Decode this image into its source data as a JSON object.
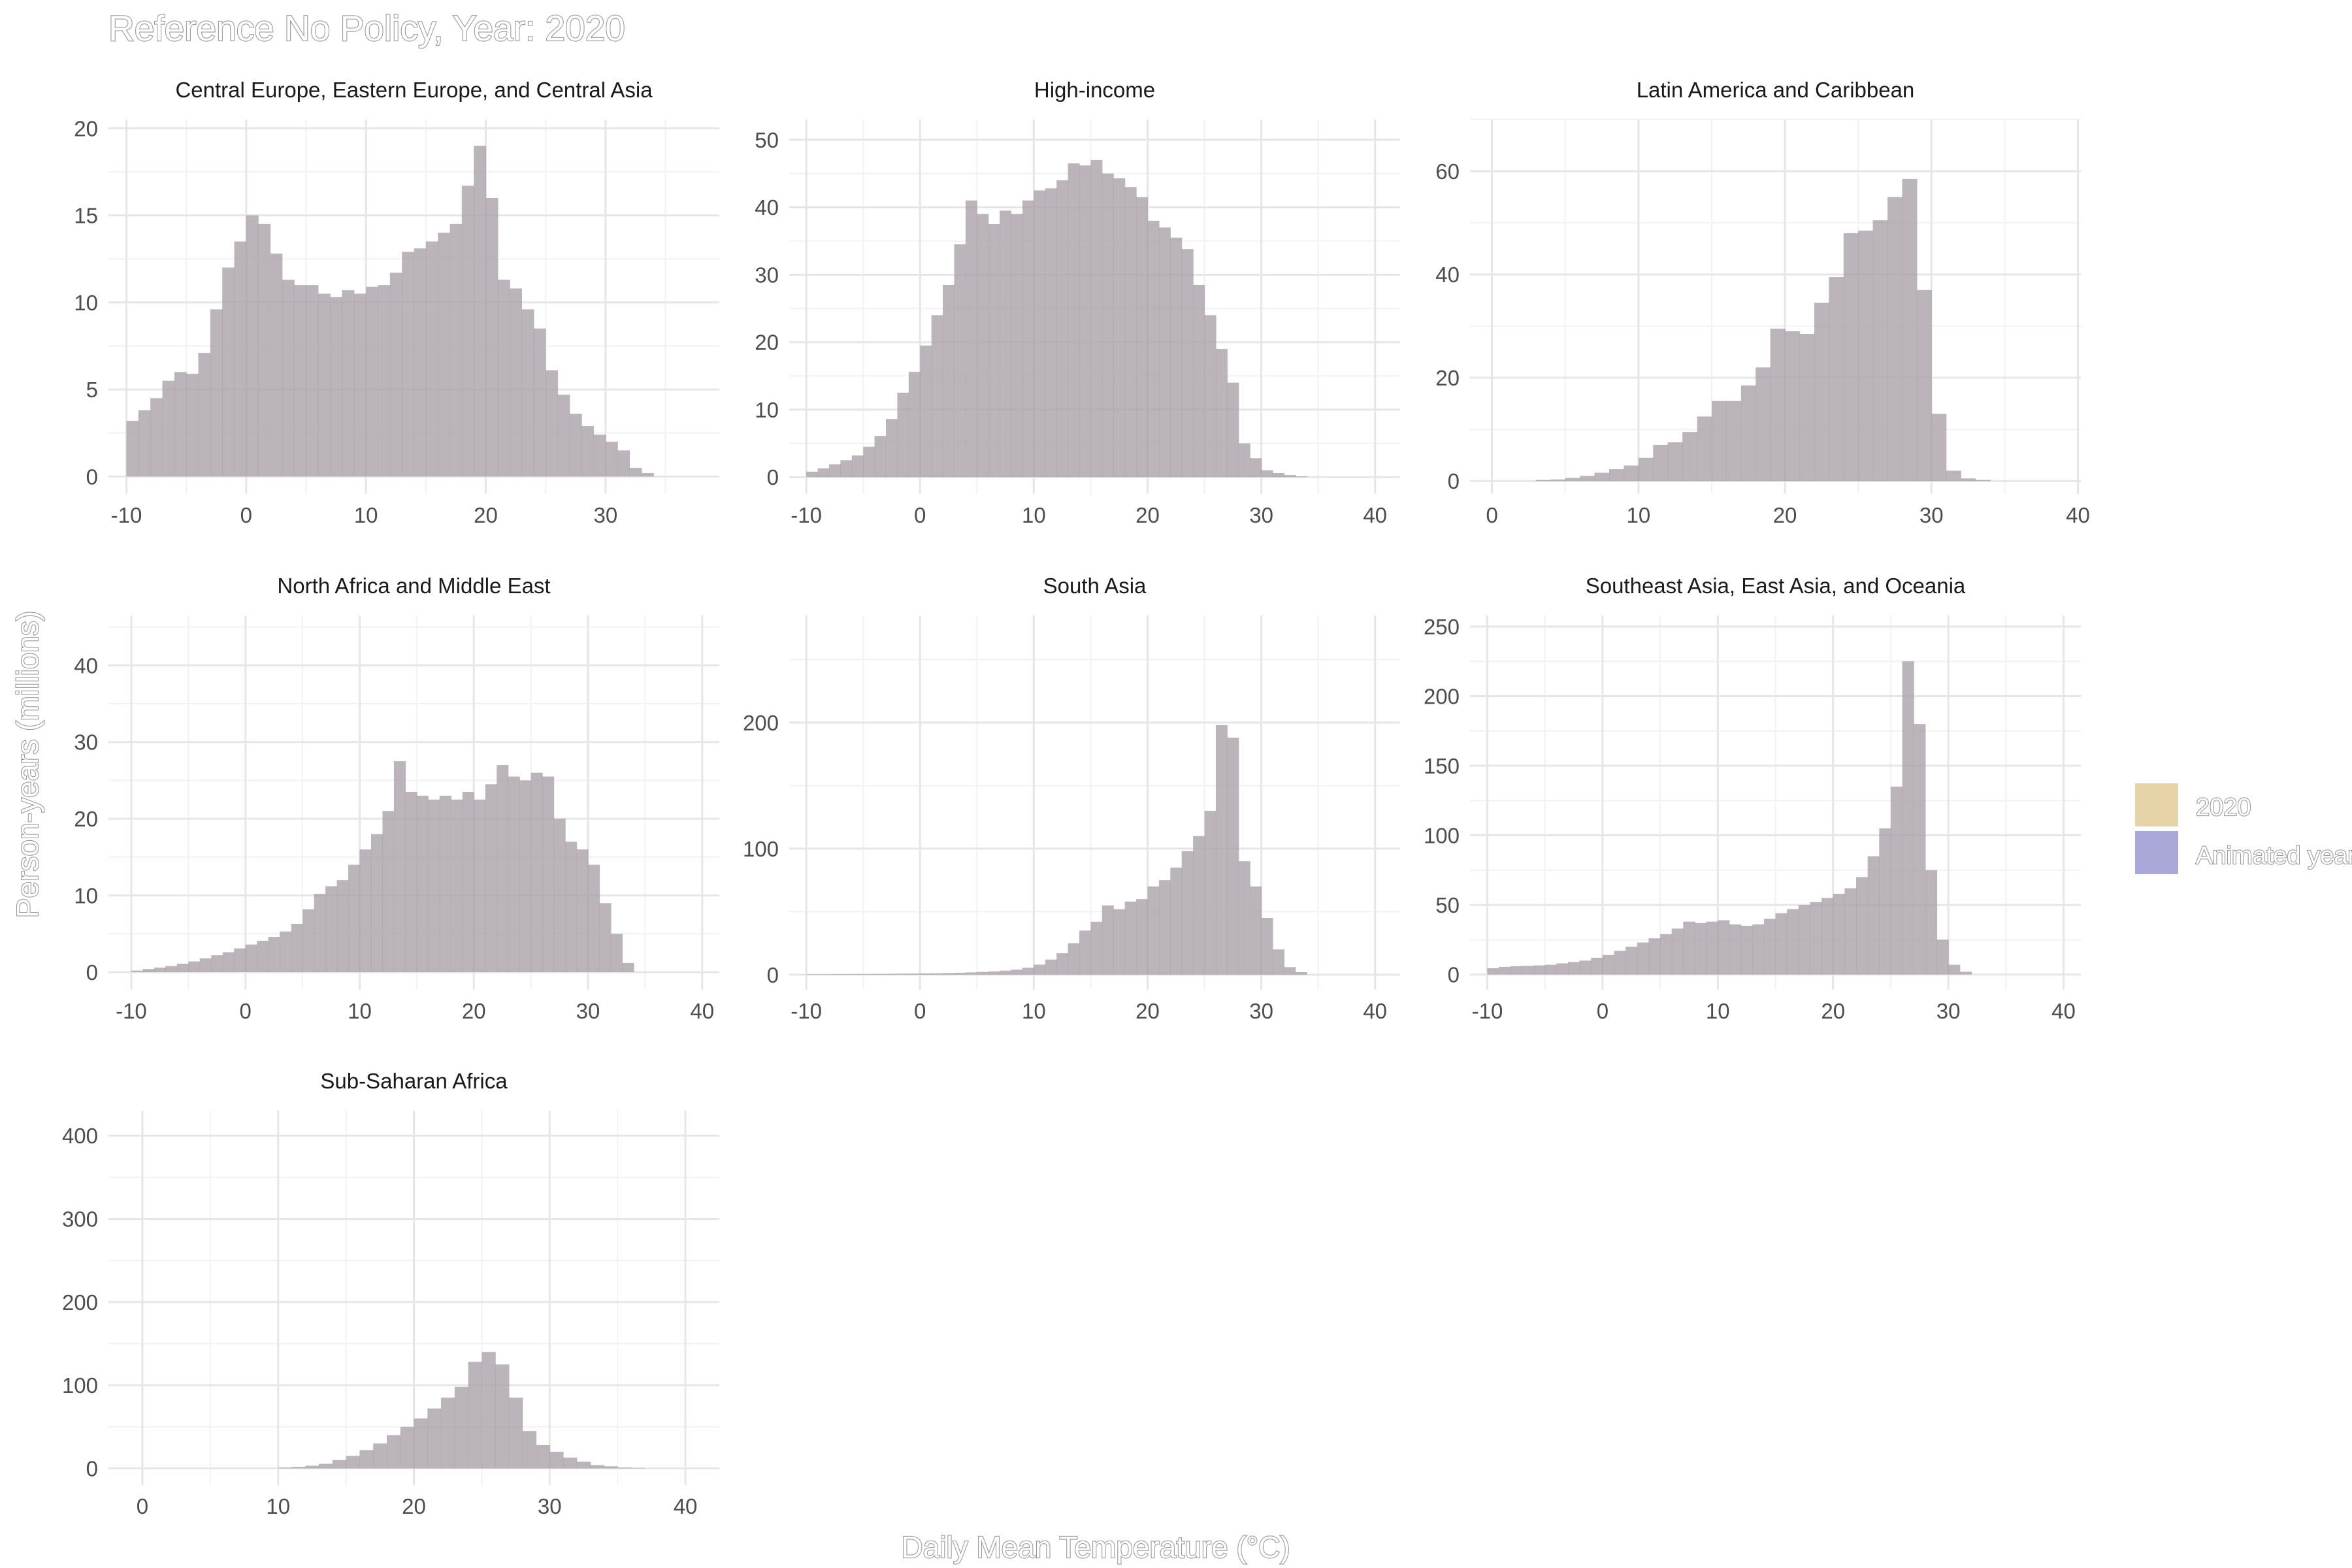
{
  "title": "Reference No Policy, Year: 2020",
  "xlabel": "Daily Mean Temperature (°C)",
  "ylabel": "Person-years (millions)",
  "legend": {
    "position": "right",
    "items": [
      {
        "label": "2020",
        "color": "#e6d3a8"
      },
      {
        "label": "Animated year",
        "color": "#a9a8d8"
      }
    ]
  },
  "bar_color": "#a8a0a8",
  "chart_data": [
    {
      "type": "bar",
      "title": "Central Europe, Eastern Europe, and Central Asia",
      "xlim": [
        -11.5,
        39.5
      ],
      "ylim": [
        -1,
        20.5
      ],
      "xticks": [
        -10,
        0,
        10,
        20,
        30
      ],
      "yticks": [
        0,
        5,
        10,
        15,
        20
      ],
      "bin_start": -10,
      "bin_width": 1,
      "values": [
        3.2,
        3.8,
        4.5,
        5.5,
        6.0,
        5.9,
        7.1,
        9.6,
        12.0,
        13.5,
        15.0,
        14.5,
        12.8,
        11.3,
        11.0,
        11.0,
        10.5,
        10.3,
        10.7,
        10.5,
        10.9,
        11.0,
        11.7,
        12.9,
        13.1,
        13.5,
        14.0,
        14.5,
        16.7,
        19.0,
        16.0,
        11.3,
        10.8,
        9.6,
        8.5,
        6.1,
        4.7,
        3.6,
        2.9,
        2.4,
        2.0,
        1.5,
        0.5,
        0.2
      ]
    },
    {
      "type": "bar",
      "title": "High-income",
      "xlim": [
        -11.5,
        42.2
      ],
      "ylim": [
        -2.5,
        53
      ],
      "xticks": [
        -10,
        0,
        10,
        20,
        30,
        40
      ],
      "yticks": [
        0,
        10,
        20,
        30,
        40,
        50
      ],
      "bin_start": -10,
      "bin_width": 1,
      "values": [
        0.8,
        1.3,
        1.9,
        2.5,
        3.2,
        4.5,
        6.1,
        8.6,
        12.5,
        15.6,
        19.5,
        24.0,
        28.5,
        34.5,
        41.0,
        39.0,
        37.5,
        39.5,
        39.0,
        41.0,
        42.5,
        42.8,
        44.0,
        46.5,
        46.2,
        47.0,
        45.0,
        44.3,
        43.0,
        41.5,
        38.0,
        37.0,
        35.5,
        33.8,
        28.5,
        24.0,
        19.0,
        14.0,
        5.0,
        2.8,
        1.0,
        0.6,
        0.3,
        0.1
      ]
    },
    {
      "type": "bar",
      "title": "Latin America and Caribbean",
      "xlim": [
        -1.5,
        40.2
      ],
      "ylim": [
        -2.5,
        70
      ],
      "xticks": [
        0,
        10,
        20,
        30,
        40
      ],
      "yticks": [
        0,
        20,
        40,
        60
      ],
      "bin_start": 3,
      "bin_width": 1,
      "values": [
        0.2,
        0.3,
        0.6,
        1.0,
        1.6,
        2.3,
        3.0,
        4.5,
        7.0,
        7.5,
        9.5,
        12.5,
        15.5,
        15.5,
        18.5,
        22.0,
        29.5,
        29.0,
        28.5,
        34.5,
        39.5,
        48.0,
        48.5,
        50.5,
        55.0,
        58.5,
        37.0,
        13.0,
        2.0,
        0.5,
        0.2
      ]
    },
    {
      "type": "bar",
      "title": "North Africa and Middle East",
      "xlim": [
        -12,
        41.5
      ],
      "ylim": [
        -2.3,
        46.5
      ],
      "xticks": [
        -10,
        0,
        10,
        20,
        30,
        40
      ],
      "yticks": [
        0,
        10,
        20,
        30,
        40
      ],
      "bin_start": -10,
      "bin_width": 1,
      "values": [
        0.2,
        0.4,
        0.6,
        0.8,
        1.1,
        1.4,
        1.8,
        2.2,
        2.6,
        3.1,
        3.6,
        4.1,
        4.6,
        5.3,
        6.3,
        8.2,
        10.2,
        11.2,
        12.0,
        14.0,
        16.0,
        18.0,
        21.0,
        27.5,
        23.5,
        23.0,
        22.5,
        23.0,
        22.5,
        23.5,
        22.5,
        24.5,
        27.0,
        25.5,
        25.0,
        26.0,
        25.5,
        20.0,
        17.0,
        16.0,
        14.0,
        9.0,
        5.0,
        1.2
      ]
    },
    {
      "type": "bar",
      "title": "South Asia",
      "xlim": [
        -11.5,
        42.2
      ],
      "ylim": [
        -12,
        285
      ],
      "xticks": [
        -10,
        0,
        10,
        20,
        30,
        40
      ],
      "yticks": [
        0,
        100,
        200
      ],
      "bin_start": -10,
      "bin_width": 1,
      "values": [
        0.3,
        0.3,
        0.4,
        0.4,
        0.5,
        0.5,
        0.6,
        0.7,
        0.8,
        0.9,
        1.0,
        1.1,
        1.3,
        1.5,
        1.8,
        2.2,
        2.6,
        3.2,
        4.0,
        5.5,
        8.0,
        12.0,
        17.0,
        25.0,
        35.0,
        42.0,
        55.0,
        52.0,
        58.0,
        60.0,
        70.0,
        75.0,
        85.0,
        98.0,
        110.0,
        130.0,
        198.0,
        188.0,
        90.0,
        70.0,
        45.0,
        20.0,
        6.0,
        2.0
      ]
    },
    {
      "type": "bar",
      "title": "Southeast Asia, East Asia, and Oceania",
      "xlim": [
        -11.5,
        41.5
      ],
      "ylim": [
        -11,
        258
      ],
      "xticks": [
        -10,
        0,
        10,
        20,
        30,
        40
      ],
      "yticks": [
        0,
        50,
        100,
        150,
        200,
        250
      ],
      "bin_start": -10,
      "bin_width": 1,
      "values": [
        4.5,
        5.5,
        6.0,
        6.2,
        6.5,
        7.0,
        8.0,
        9.0,
        10.0,
        12.0,
        14.0,
        17.0,
        20.0,
        23.0,
        26.0,
        29.0,
        33.0,
        38.0,
        37.0,
        38.0,
        39.0,
        36.0,
        35.0,
        36.0,
        40.0,
        44.0,
        47.0,
        50.0,
        52.0,
        55.0,
        58.0,
        62.0,
        70.0,
        85.0,
        105.0,
        135.0,
        225.0,
        180.0,
        75.0,
        25.0,
        7.0,
        2.0
      ]
    },
    {
      "type": "bar",
      "title": "Sub-Saharan Africa",
      "xlim": [
        -2.5,
        42.5
      ],
      "ylim": [
        -20,
        430
      ],
      "xticks": [
        0,
        10,
        20,
        30,
        40
      ],
      "yticks": [
        0,
        100,
        200,
        300,
        400
      ],
      "bin_start": 10,
      "bin_width": 1,
      "values": [
        1.0,
        1.8,
        3.2,
        5.5,
        10.0,
        15.0,
        22.0,
        30.0,
        40.0,
        50.0,
        60.0,
        72.0,
        85.0,
        98.0,
        128.0,
        140.0,
        125.0,
        85.0,
        45.0,
        28.0,
        20.0,
        13.0,
        8.0,
        4.0,
        2.5,
        1.0,
        0.5
      ]
    }
  ]
}
